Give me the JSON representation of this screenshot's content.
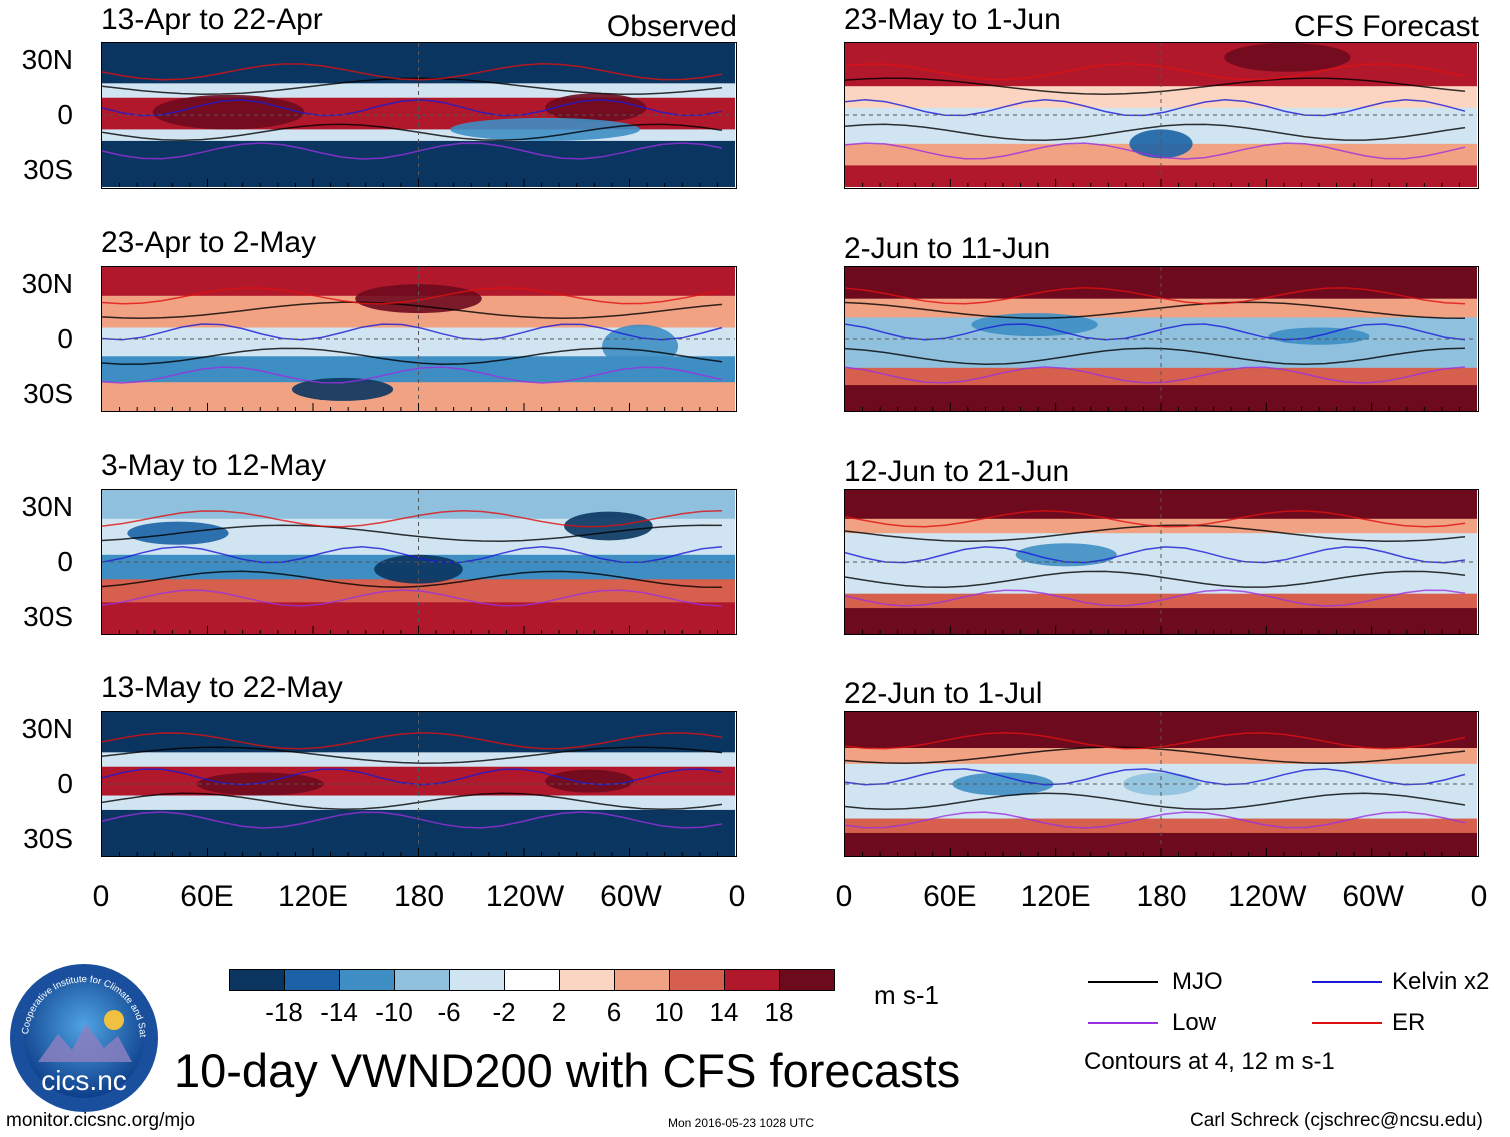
{
  "chart_data": {
    "type": "heatmap",
    "title": "10-day VWND200 with CFS forecasts",
    "variable": "VWND200",
    "units": "m s-1",
    "columns": [
      {
        "heading": "Observed",
        "panels": [
          "13-Apr to 22-Apr",
          "23-Apr to 2-May",
          "3-May to 12-May",
          "13-May to 22-May"
        ]
      },
      {
        "heading": "CFS Forecast",
        "panels": [
          "23-May to 1-Jun",
          "2-Jun to 11-Jun",
          "12-Jun to 21-Jun",
          "22-Jun to 1-Jul"
        ]
      }
    ],
    "lat_ticks": [
      "30N",
      "0",
      "30S"
    ],
    "lat_range": [
      -40,
      40
    ],
    "lon_ticks": [
      "0",
      "60E",
      "120E",
      "180",
      "120W",
      "60W",
      "0"
    ],
    "lon_range": [
      0,
      360
    ],
    "colorbar": {
      "levels": [
        "-18",
        "-14",
        "-10",
        "-6",
        "-2",
        "2",
        "6",
        "10",
        "14",
        "18"
      ],
      "colors": [
        "#0a3560",
        "#1b63a6",
        "#3e8ec4",
        "#8fc1de",
        "#d0e5f1",
        "#ffffff",
        "#fbd5c2",
        "#f1a283",
        "#d6604d",
        "#b2182b",
        "#6e0a1e"
      ]
    },
    "contour_legend": [
      {
        "name": "MJO",
        "color": "#000000"
      },
      {
        "name": "Kelvin x2",
        "color": "#1a1ad6"
      },
      {
        "name": "Low",
        "color": "#9b30e0"
      },
      {
        "name": "ER",
        "color": "#e01010"
      }
    ],
    "contour_note": "Contours at 4, 12 m s-1"
  },
  "logo": {
    "text": "cics.nc",
    "ring_text": "Cooperative Institute for Climate and Satellites"
  },
  "footer": {
    "url": "monitor.cicsnc.org/mjo",
    "timestamp": "Mon 2016-05-23 1028 UTC",
    "author": "Carl Schreck (cjschrec@ncsu.edu)"
  }
}
